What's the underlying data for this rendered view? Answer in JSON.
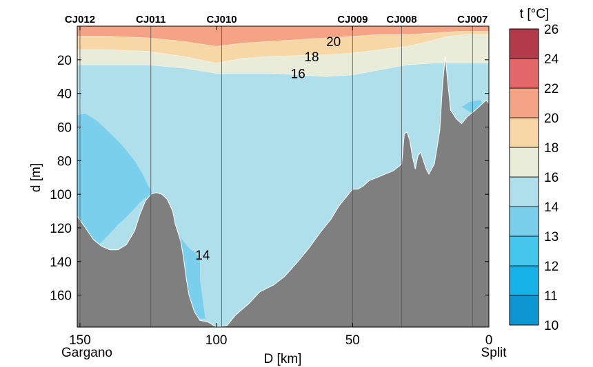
{
  "chart_data": {
    "type": "heatmap",
    "title": "",
    "xlabel": "D [km]",
    "ylabel": "d [m]",
    "xlim": [
      151,
      0
    ],
    "ylim": [
      0,
      179
    ],
    "x_ticks": [
      150,
      100,
      50,
      0
    ],
    "y_ticks": [
      20,
      40,
      60,
      80,
      100,
      120,
      140,
      160
    ],
    "x_end_labels": {
      "left": "Gargano",
      "right": "Split"
    },
    "stations": [
      {
        "name": "CJ012",
        "x": 150
      },
      {
        "name": "CJ011",
        "x": 124
      },
      {
        "name": "CJ010",
        "x": 98
      },
      {
        "name": "CJ009",
        "x": 50
      },
      {
        "name": "CJ008",
        "x": 32
      },
      {
        "name": "CJ007",
        "x": 6
      }
    ],
    "colorbar": {
      "title": "t [°C]",
      "levels": [
        10,
        11,
        12,
        13,
        14,
        16,
        18,
        20,
        22,
        24,
        26
      ],
      "colors": [
        "#0c97d2",
        "#16b1e6",
        "#45c6ec",
        "#7ad0ec",
        "#b0dfec",
        "#e8ecd8",
        "#f7d7a6",
        "#f4a484",
        "#e4676a",
        "#b23a4a"
      ]
    },
    "isotherms": [
      {
        "value": 20,
        "points": [
          [
            151,
            6
          ],
          [
            140,
            6
          ],
          [
            125,
            7
          ],
          [
            112,
            9
          ],
          [
            100,
            12
          ],
          [
            90,
            10
          ],
          [
            80,
            9
          ],
          [
            60,
            7
          ],
          [
            40,
            5
          ],
          [
            30,
            5
          ],
          [
            20,
            4
          ],
          [
            10,
            3
          ],
          [
            0,
            3
          ]
        ]
      },
      {
        "value": 18,
        "points": [
          [
            151,
            14
          ],
          [
            140,
            14
          ],
          [
            125,
            15
          ],
          [
            112,
            18
          ],
          [
            100,
            22
          ],
          [
            90,
            19
          ],
          [
            80,
            18
          ],
          [
            60,
            17
          ],
          [
            50,
            16
          ],
          [
            40,
            14
          ],
          [
            30,
            12
          ],
          [
            22,
            9
          ],
          [
            15,
            6
          ],
          [
            8,
            5
          ],
          [
            0,
            5
          ]
        ]
      },
      {
        "value": 16,
        "points": [
          [
            151,
            23
          ],
          [
            140,
            23
          ],
          [
            125,
            23
          ],
          [
            112,
            25
          ],
          [
            100,
            28
          ],
          [
            90,
            28
          ],
          [
            80,
            28
          ],
          [
            70,
            29
          ],
          [
            60,
            30
          ],
          [
            50,
            29
          ],
          [
            40,
            26
          ],
          [
            30,
            23
          ],
          [
            20,
            22
          ],
          [
            0,
            22
          ]
        ]
      }
    ],
    "contour_labels": [
      {
        "value": "20",
        "x": 57,
        "y": 9
      },
      {
        "value": "18",
        "x": 65,
        "y": 18
      },
      {
        "value": "16",
        "x": 70,
        "y": 28
      },
      {
        "value": "14",
        "x": 105,
        "y": 136
      }
    ],
    "cold_regions": [
      {
        "level": 13,
        "points": [
          [
            151,
            53
          ],
          [
            148,
            52
          ],
          [
            144,
            56
          ],
          [
            140,
            62
          ],
          [
            135,
            70
          ],
          [
            130,
            80
          ],
          [
            127,
            88
          ],
          [
            125,
            95
          ],
          [
            123,
            100
          ],
          [
            124,
            102
          ],
          [
            126,
            102
          ],
          [
            128,
            105
          ],
          [
            132,
            112
          ],
          [
            136,
            118
          ],
          [
            140,
            125
          ],
          [
            143,
            130
          ],
          [
            146,
            133
          ],
          [
            148,
            132
          ],
          [
            151,
            113
          ]
        ]
      },
      {
        "level": 13,
        "points": [
          [
            116,
            117
          ],
          [
            113,
            126
          ],
          [
            110,
            132
          ],
          [
            107,
            136
          ],
          [
            106,
            140
          ],
          [
            106,
            150
          ],
          [
            105,
            163
          ],
          [
            104,
            174
          ],
          [
            108,
            174
          ],
          [
            112,
            172
          ],
          [
            113,
            150
          ],
          [
            115,
            135
          ]
        ]
      },
      {
        "level": 13,
        "points": [
          [
            10,
            48
          ],
          [
            7,
            45
          ],
          [
            3,
            44
          ],
          [
            2,
            48
          ],
          [
            6,
            52
          ]
        ]
      }
    ],
    "bathymetry": [
      [
        151,
        113
      ],
      [
        148,
        120
      ],
      [
        145,
        127
      ],
      [
        142,
        131
      ],
      [
        139,
        133
      ],
      [
        136,
        133
      ],
      [
        133,
        130
      ],
      [
        130,
        122
      ],
      [
        128,
        112
      ],
      [
        126,
        104
      ],
      [
        124,
        100
      ],
      [
        122,
        99
      ],
      [
        120,
        100
      ],
      [
        118,
        103
      ],
      [
        116,
        110
      ],
      [
        115,
        118
      ],
      [
        113,
        128
      ],
      [
        112,
        138
      ],
      [
        111,
        150
      ],
      [
        110,
        160
      ],
      [
        108,
        170
      ],
      [
        106,
        175
      ],
      [
        103,
        176
      ],
      [
        100,
        179
      ],
      [
        96,
        178
      ],
      [
        93,
        172
      ],
      [
        88,
        165
      ],
      [
        84,
        158
      ],
      [
        79,
        154
      ],
      [
        75,
        149
      ],
      [
        70,
        140
      ],
      [
        66,
        132
      ],
      [
        62,
        123
      ],
      [
        58,
        115
      ],
      [
        55,
        107
      ],
      [
        52,
        101
      ],
      [
        50,
        97
      ],
      [
        48,
        97
      ],
      [
        46,
        95
      ],
      [
        44,
        92
      ],
      [
        41,
        90
      ],
      [
        38,
        88
      ],
      [
        35,
        86
      ],
      [
        32,
        82
      ],
      [
        31,
        64
      ],
      [
        30,
        63
      ],
      [
        29,
        68
      ],
      [
        28,
        78
      ],
      [
        27,
        85
      ],
      [
        26,
        77
      ],
      [
        25,
        75
      ],
      [
        24,
        80
      ],
      [
        23,
        85
      ],
      [
        22,
        88
      ],
      [
        21,
        85
      ],
      [
        20,
        82
      ],
      [
        19,
        72
      ],
      [
        18,
        62
      ],
      [
        17,
        35
      ],
      [
        16,
        18
      ],
      [
        15,
        35
      ],
      [
        14,
        50
      ],
      [
        12,
        55
      ],
      [
        10,
        58
      ],
      [
        8,
        54
      ],
      [
        5,
        50
      ],
      [
        3,
        47
      ],
      [
        1,
        44
      ],
      [
        0,
        46
      ]
    ]
  }
}
